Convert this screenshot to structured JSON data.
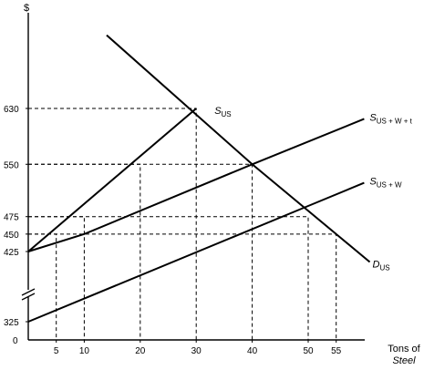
{
  "chart_data": {
    "type": "line",
    "title": "",
    "ylabel": "$",
    "xlabel": "Tons of Steel",
    "xlabel_lines": [
      "Tons of",
      "Steel"
    ],
    "x_ticks": [
      5,
      10,
      20,
      30,
      40,
      50,
      55
    ],
    "y_ticks": [
      325,
      425,
      450,
      475,
      550,
      630
    ],
    "y_origin_label": "0",
    "axis_break": true,
    "xlim": [
      0,
      70
    ],
    "series": [
      {
        "name": "SUS",
        "label_main": "S",
        "label_sub": "US",
        "segment": "upper",
        "x": [
          0,
          30
        ],
        "y": [
          425,
          630
        ]
      },
      {
        "name": "DUS",
        "label_main": "D",
        "label_sub": "US",
        "segment": "upper",
        "x": [
          14,
          40,
          55,
          61
        ],
        "y": [
          735,
          550,
          450,
          410
        ]
      },
      {
        "name": "SUS + W + t",
        "label_main": "S",
        "label_sub": "US + W + t",
        "segment": "upper",
        "x": [
          0,
          10,
          40,
          60
        ],
        "y": [
          425,
          450,
          550,
          615
        ]
      },
      {
        "name": "SUS + W",
        "label_main": "S",
        "label_sub": "US + W",
        "segment": "break",
        "x": [
          0,
          50,
          60
        ],
        "y": [
          325,
          475,
          505
        ]
      }
    ],
    "reference_lines": [
      {
        "x": 30,
        "y": 630
      },
      {
        "x": 40,
        "y": 550
      },
      {
        "x": 20,
        "y": 550
      },
      {
        "x": 50,
        "y": 475
      },
      {
        "x": 10,
        "y": 475
      },
      {
        "x": 55,
        "y": 450
      },
      {
        "x": 5,
        "y": 450
      }
    ]
  }
}
